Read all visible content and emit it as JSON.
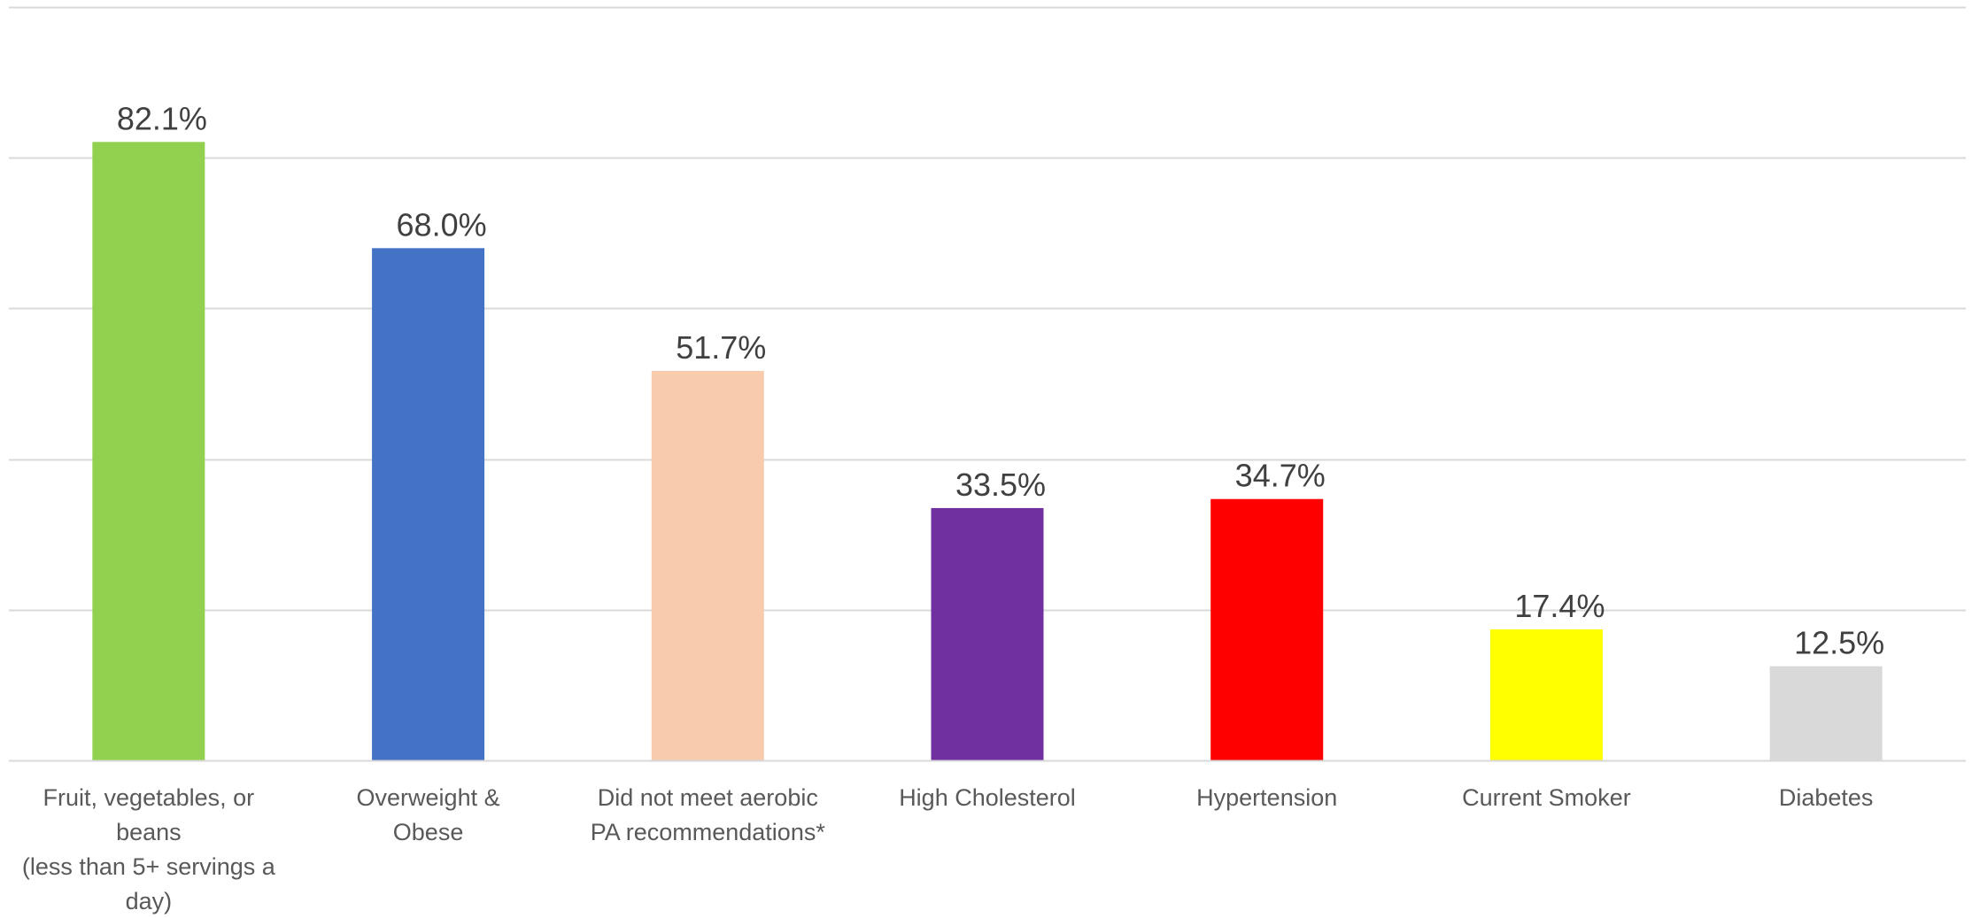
{
  "chart_data": {
    "type": "bar",
    "title": "",
    "xlabel": "",
    "ylabel": "",
    "ylim": [
      0,
      100
    ],
    "y_axis_visible": false,
    "grid": true,
    "legend": "none",
    "value_format": "percent-1dp",
    "categories": [
      {
        "lines": [
          "Fruit, vegetables, or",
          "beans",
          "(less than 5+ servings a",
          "day)"
        ],
        "value": 82.1,
        "label": "82.1%",
        "color": "#92D050"
      },
      {
        "lines": [
          "Overweight &",
          "Obese"
        ],
        "value": 68.0,
        "label": "68.0%",
        "color": "#4472C4"
      },
      {
        "lines": [
          "Did not meet aerobic",
          "PA recommendations*"
        ],
        "value": 51.7,
        "label": "51.7%",
        "color": "#F8CBAD"
      },
      {
        "lines": [
          "High Cholesterol"
        ],
        "value": 33.5,
        "label": "33.5%",
        "color": "#7030A0"
      },
      {
        "lines": [
          "Hypertension"
        ],
        "value": 34.7,
        "label": "34.7%",
        "color": "#FF0000"
      },
      {
        "lines": [
          "Current Smoker"
        ],
        "value": 17.4,
        "label": "17.4%",
        "color": "#FFFF00"
      },
      {
        "lines": [
          "Diabetes"
        ],
        "value": 12.5,
        "label": "12.5%",
        "color": "#D9D9D9"
      }
    ]
  }
}
